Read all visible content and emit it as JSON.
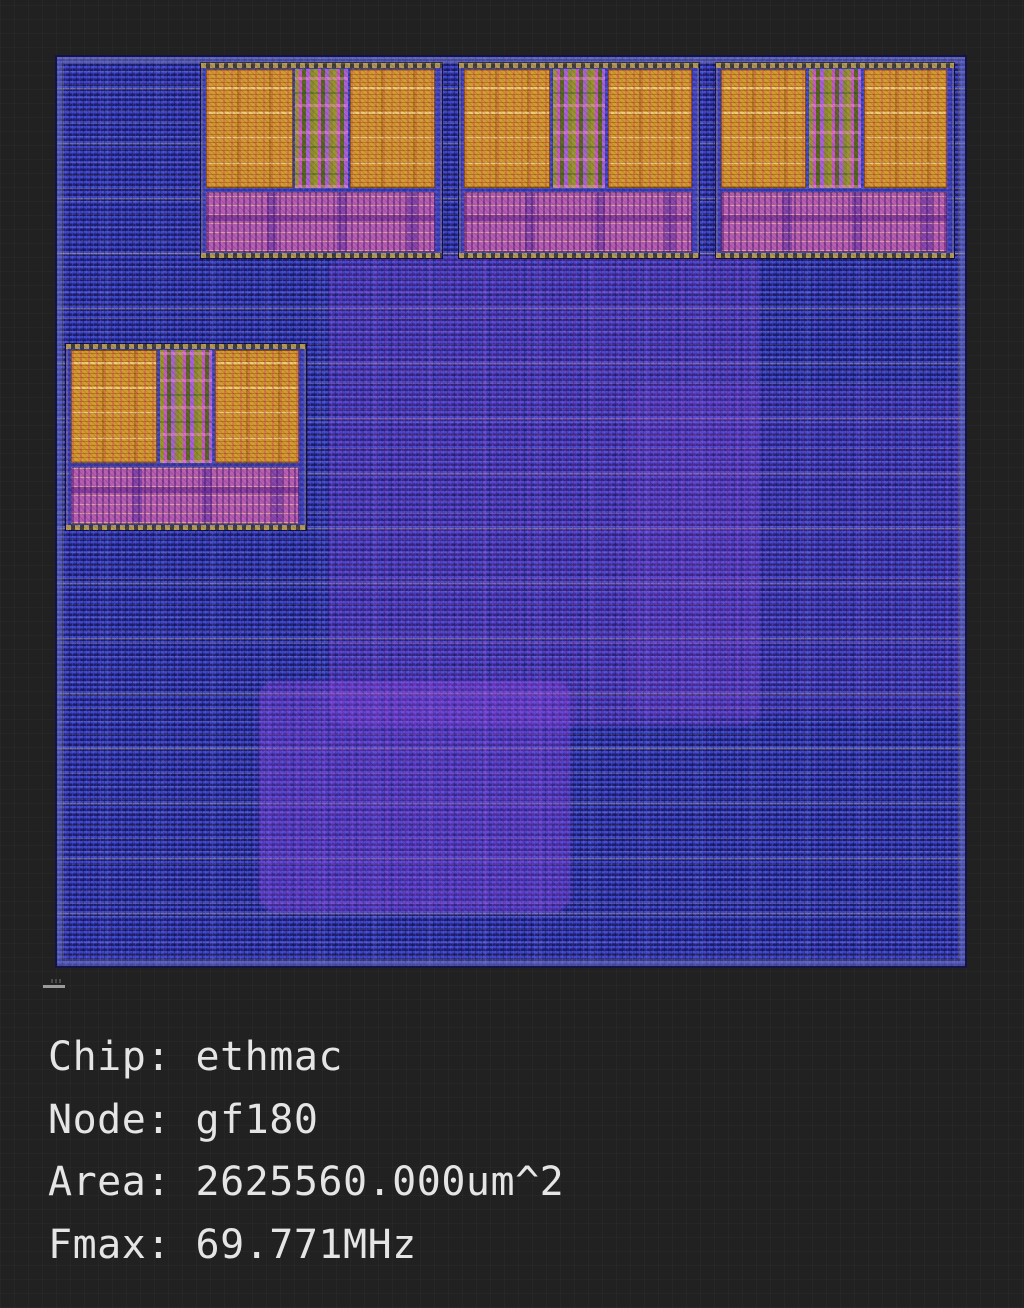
{
  "view": {
    "title": "chip-layout-render",
    "palette": {
      "canvas_background": "#212121",
      "fabric_blue": "#2a2e9c",
      "row_strap_tan": "#cdbb8a",
      "macro_orange": "#d39a30",
      "stripe_olive": "#97922f",
      "stripe_magenta": "#c653c8",
      "logic_pink": "#b55cb0",
      "hotspot_violet": "#8a4ad0",
      "caption_text": "#e5e5e5"
    },
    "regions": {
      "top_macro_clusters": 3,
      "left_macro_clusters": 1,
      "hotspots": [
        "center",
        "bottom",
        "right"
      ]
    }
  },
  "caption": {
    "lines": [
      {
        "label": "Chip:",
        "value": "ethmac"
      },
      {
        "label": "Node:",
        "value": "gf180"
      },
      {
        "label": "Area:",
        "value": "2625560.000um^2"
      },
      {
        "label": "Fmax:",
        "value": "69.771MHz"
      }
    ]
  }
}
